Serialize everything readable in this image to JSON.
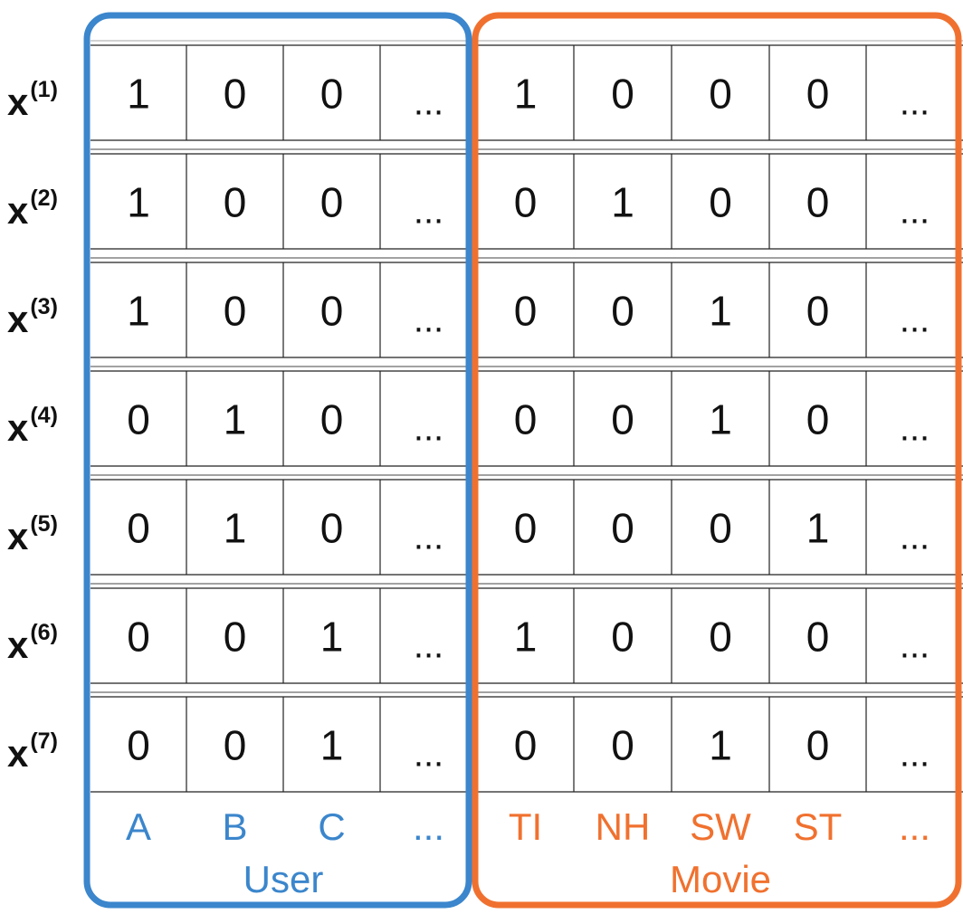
{
  "row_labels": [
    {
      "base": "x",
      "sup": "(1)"
    },
    {
      "base": "x",
      "sup": "(2)"
    },
    {
      "base": "x",
      "sup": "(3)"
    },
    {
      "base": "x",
      "sup": "(4)"
    },
    {
      "base": "x",
      "sup": "(5)"
    },
    {
      "base": "x",
      "sup": "(6)"
    },
    {
      "base": "x",
      "sup": "(7)"
    }
  ],
  "user": {
    "label": "User",
    "color": "#3b86cc",
    "columns": [
      "A",
      "B",
      "C",
      "..."
    ],
    "rows": [
      [
        "1",
        "0",
        "0",
        "..."
      ],
      [
        "1",
        "0",
        "0",
        "..."
      ],
      [
        "1",
        "0",
        "0",
        "..."
      ],
      [
        "0",
        "1",
        "0",
        "..."
      ],
      [
        "0",
        "1",
        "0",
        "..."
      ],
      [
        "0",
        "0",
        "1",
        "..."
      ],
      [
        "0",
        "0",
        "1",
        "..."
      ]
    ]
  },
  "movie": {
    "label": "Movie",
    "color": "#f0712f",
    "columns": [
      "TI",
      "NH",
      "SW",
      "ST",
      "..."
    ],
    "rows": [
      [
        "1",
        "0",
        "0",
        "0",
        "..."
      ],
      [
        "0",
        "1",
        "0",
        "0",
        "..."
      ],
      [
        "0",
        "0",
        "1",
        "0",
        "..."
      ],
      [
        "0",
        "0",
        "1",
        "0",
        "..."
      ],
      [
        "0",
        "0",
        "0",
        "1",
        "..."
      ],
      [
        "1",
        "0",
        "0",
        "0",
        "..."
      ],
      [
        "0",
        "0",
        "1",
        "0",
        "..."
      ]
    ]
  }
}
